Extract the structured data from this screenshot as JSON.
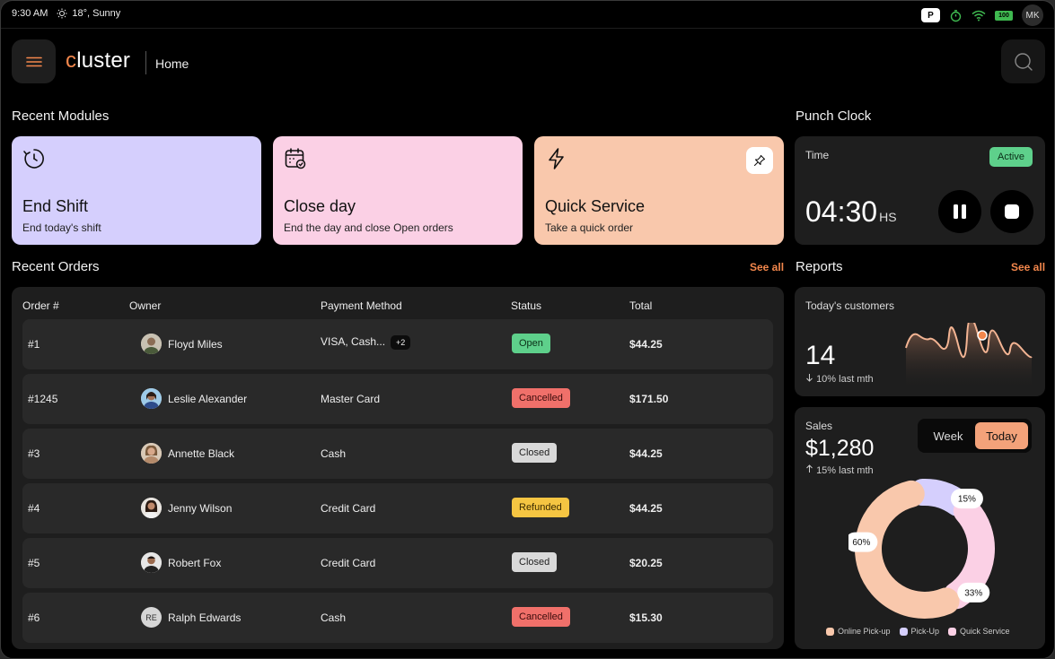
{
  "status_bar": {
    "time": "9:30 AM",
    "weather": "18°, Sunny",
    "p_badge": "P",
    "battery": "100",
    "avatar_initials": "MK"
  },
  "header": {
    "logo_first": "c",
    "logo_rest": "luster",
    "breadcrumb": "Home"
  },
  "recent_modules": {
    "title": "Recent Modules",
    "items": [
      {
        "title": "End Shift",
        "subtitle": "End today's shift",
        "icon": "timer-icon",
        "color": "#d5cffd"
      },
      {
        "title": "Close day",
        "subtitle": "End the day and close Open orders",
        "icon": "calendar-check-icon",
        "color": "#fbd0e5"
      },
      {
        "title": "Quick Service",
        "subtitle": "Take a quick order",
        "icon": "lightning-icon",
        "color": "#f9c8ac"
      }
    ]
  },
  "punch_clock": {
    "title": "Punch Clock",
    "label": "Time",
    "status": "Active",
    "time": "04:30",
    "unit": "HS"
  },
  "recent_orders": {
    "title": "Recent Orders",
    "see_all": "See all",
    "columns": [
      "Order #",
      "Owner",
      "Payment Method",
      "Status",
      "Total"
    ],
    "rows": [
      {
        "order": "#1",
        "owner": "Floyd Miles",
        "payment": "VISA, Cash...",
        "extra": "+2",
        "status": "Open",
        "total": "$44.25"
      },
      {
        "order": "#1245",
        "owner": "Leslie Alexander",
        "payment": "Master Card",
        "extra": "",
        "status": "Cancelled",
        "total": "$171.50"
      },
      {
        "order": "#3",
        "owner": "Annette Black",
        "payment": "Cash",
        "extra": "",
        "status": "Closed",
        "total": "$44.25"
      },
      {
        "order": "#4",
        "owner": "Jenny Wilson",
        "payment": "Credit Card",
        "extra": "",
        "status": "Refunded",
        "total": "$44.25"
      },
      {
        "order": "#5",
        "owner": "Robert Fox",
        "payment": "Credit Card",
        "extra": "",
        "status": "Closed",
        "total": "$20.25"
      },
      {
        "order": "#6",
        "owner": "Ralph Edwards",
        "owner_initials": "RE",
        "payment": "Cash",
        "extra": "",
        "status": "Cancelled",
        "total": "$15.30"
      }
    ],
    "status_colors": {
      "Open": "#5ed08b",
      "Cancelled": "#f0706a",
      "Closed": "#d9d9d9",
      "Refunded": "#f5c542"
    }
  },
  "reports": {
    "title": "Reports",
    "see_all": "See all",
    "customers": {
      "label": "Today's customers",
      "value": "14",
      "change": "10% last mth"
    },
    "sales": {
      "label": "Sales",
      "value": "$1,280",
      "change": "15% last mth",
      "toggle": [
        "Week",
        "Today"
      ],
      "selected": "Today",
      "chart_data": {
        "type": "pie",
        "categories": [
          "Online Pick-up",
          "Pick-Up",
          "Quick Service"
        ],
        "values": [
          60,
          15,
          33
        ],
        "labels": [
          "60%",
          "15%",
          "33%"
        ],
        "colors": [
          "#f9c8ac",
          "#d5cffd",
          "#fbd0e5"
        ],
        "legend": "bottom"
      }
    }
  }
}
